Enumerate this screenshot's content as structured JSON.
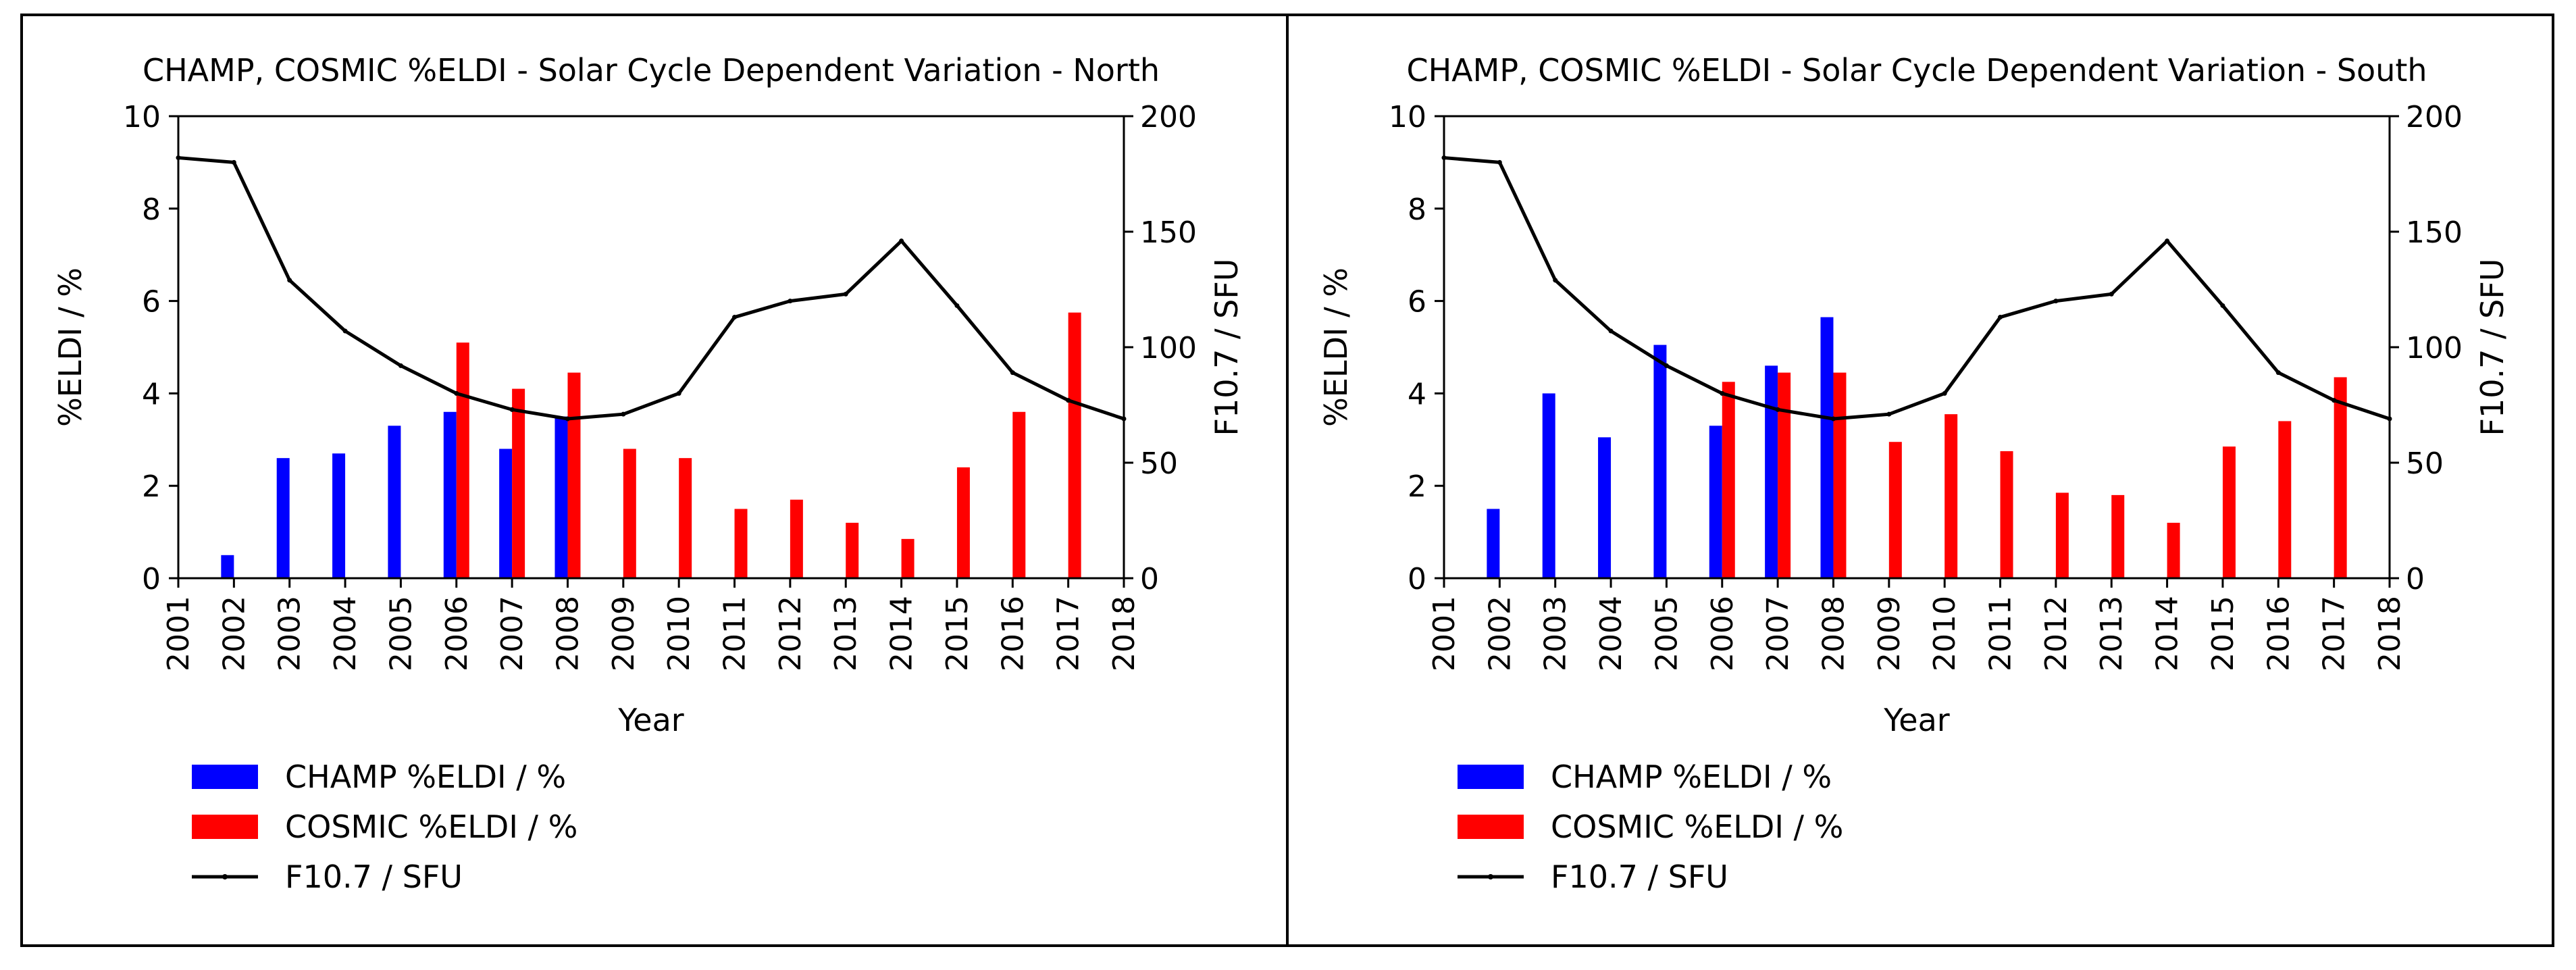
{
  "chart_data": [
    {
      "type": "bar",
      "title": "CHAMP, COSMIC %ELDI - Solar Cycle Dependent Variation - North",
      "xlabel": "Year",
      "ylabel": "%ELDI / %",
      "y2label": "F10.7 / SFU",
      "categories": [
        "2001",
        "2002",
        "2003",
        "2004",
        "2005",
        "2006",
        "2007",
        "2008",
        "2009",
        "2010",
        "2011",
        "2012",
        "2013",
        "2014",
        "2015",
        "2016",
        "2017",
        "2018"
      ],
      "ylim": [
        0,
        10
      ],
      "yticks": [
        "0",
        "2",
        "4",
        "6",
        "8",
        "10"
      ],
      "y2lim": [
        0,
        200
      ],
      "y2ticks": [
        "0",
        "50",
        "100",
        "150",
        "200"
      ],
      "grid": false,
      "legend_position": "bottom-left",
      "series": [
        {
          "name": "CHAMP %ELDI / %",
          "kind": "bar",
          "color": "#0000ff",
          "values": [
            null,
            0.5,
            2.6,
            2.7,
            3.3,
            3.6,
            2.8,
            3.5,
            null,
            null,
            null,
            null,
            null,
            null,
            null,
            null,
            null,
            null
          ]
        },
        {
          "name": "COSMIC %ELDI / %",
          "kind": "bar",
          "color": "#ff0000",
          "values": [
            null,
            null,
            null,
            null,
            null,
            5.1,
            4.1,
            4.45,
            2.8,
            2.6,
            1.5,
            1.7,
            1.2,
            0.85,
            2.4,
            3.6,
            5.75,
            null
          ]
        },
        {
          "name": "F10.7 / SFU",
          "kind": "line",
          "axis": "right",
          "color": "#000000",
          "values": [
            182,
            180,
            129,
            107,
            92,
            80,
            73,
            69,
            71,
            80,
            113,
            120,
            123,
            146,
            118,
            89,
            77,
            69
          ]
        }
      ]
    },
    {
      "type": "bar",
      "title": "CHAMP, COSMIC %ELDI - Solar Cycle Dependent Variation - South",
      "xlabel": "Year",
      "ylabel": "%ELDI / %",
      "y2label": "F10.7 / SFU",
      "categories": [
        "2001",
        "2002",
        "2003",
        "2004",
        "2005",
        "2006",
        "2007",
        "2008",
        "2009",
        "2010",
        "2011",
        "2012",
        "2013",
        "2014",
        "2015",
        "2016",
        "2017",
        "2018"
      ],
      "ylim": [
        0,
        10
      ],
      "yticks": [
        "0",
        "2",
        "4",
        "6",
        "8",
        "10"
      ],
      "y2lim": [
        0,
        200
      ],
      "y2ticks": [
        "0",
        "50",
        "100",
        "150",
        "200"
      ],
      "grid": false,
      "legend_position": "bottom-left",
      "series": [
        {
          "name": "CHAMP %ELDI / %",
          "kind": "bar",
          "color": "#0000ff",
          "values": [
            null,
            1.5,
            4.0,
            3.05,
            5.05,
            3.3,
            4.6,
            5.65,
            null,
            null,
            null,
            null,
            null,
            null,
            null,
            null,
            null,
            null
          ]
        },
        {
          "name": "COSMIC %ELDI / %",
          "kind": "bar",
          "color": "#ff0000",
          "values": [
            null,
            null,
            null,
            null,
            null,
            4.25,
            4.45,
            4.45,
            2.95,
            3.55,
            2.75,
            1.85,
            1.8,
            1.2,
            2.85,
            3.4,
            4.35,
            null
          ]
        },
        {
          "name": "F10.7 / SFU",
          "kind": "line",
          "axis": "right",
          "color": "#000000",
          "values": [
            182,
            180,
            129,
            107,
            92,
            80,
            73,
            69,
            71,
            80,
            113,
            120,
            123,
            146,
            118,
            89,
            77,
            69
          ]
        }
      ]
    }
  ]
}
